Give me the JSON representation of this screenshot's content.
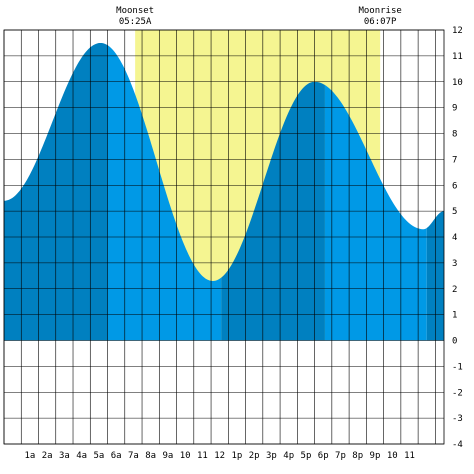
{
  "chart_data": {
    "type": "area",
    "title": "",
    "xlabel": "",
    "ylabel": "",
    "x_unit": "hour of day",
    "xlim": [
      0,
      25.5
    ],
    "ylim": [
      -4,
      12
    ],
    "y_ticks": [
      -4,
      -3,
      -2,
      -1,
      0,
      1,
      2,
      3,
      4,
      5,
      6,
      7,
      8,
      9,
      10,
      11,
      12
    ],
    "x_tick_labels": [
      {
        "x": 1,
        "label": "1a"
      },
      {
        "x": 2,
        "label": "2a"
      },
      {
        "x": 3,
        "label": "3a"
      },
      {
        "x": 4,
        "label": "4a"
      },
      {
        "x": 5,
        "label": "5a"
      },
      {
        "x": 6,
        "label": "6a"
      },
      {
        "x": 7,
        "label": "7a"
      },
      {
        "x": 8,
        "label": "8a"
      },
      {
        "x": 9,
        "label": "9a"
      },
      {
        "x": 10,
        "label": "10"
      },
      {
        "x": 11,
        "label": "11"
      },
      {
        "x": 12,
        "label": "12"
      },
      {
        "x": 13,
        "label": "1p"
      },
      {
        "x": 14,
        "label": "2p"
      },
      {
        "x": 15,
        "label": "3p"
      },
      {
        "x": 16,
        "label": "4p"
      },
      {
        "x": 17,
        "label": "5p"
      },
      {
        "x": 18,
        "label": "6p"
      },
      {
        "x": 19,
        "label": "7p"
      },
      {
        "x": 20,
        "label": "8p"
      },
      {
        "x": 21,
        "label": "9p"
      },
      {
        "x": 22,
        "label": "10"
      },
      {
        "x": 23,
        "label": "11"
      }
    ],
    "tide_extremes": [
      {
        "x": 0,
        "y": 5.4
      },
      {
        "x": 5.6,
        "y": 11.5
      },
      {
        "x": 12.1,
        "y": 2.3
      },
      {
        "x": 18.0,
        "y": 10.0
      },
      {
        "x": 24.3,
        "y": 4.3
      },
      {
        "x": 25.5,
        "y": 5.0
      }
    ],
    "moon_visible_window": {
      "start": 7.6,
      "end": 21.8
    },
    "night_shading": [
      {
        "start": 0,
        "end": 6.0
      },
      {
        "start": 12.6,
        "end": 18.6
      },
      {
        "start": 24.5,
        "end": 25.5
      }
    ],
    "annotations": [
      {
        "name": "Moonset",
        "time": "05:25A",
        "x": 7.6
      },
      {
        "name": "Moonrise",
        "time": "06:07P",
        "x": 21.8
      }
    ],
    "colors": {
      "tide_day": "#0099e6",
      "tide_night": "#0080c0",
      "moon_up": "#f5f591",
      "background": "#ffffff",
      "grid": "#000000"
    },
    "grid": true
  }
}
